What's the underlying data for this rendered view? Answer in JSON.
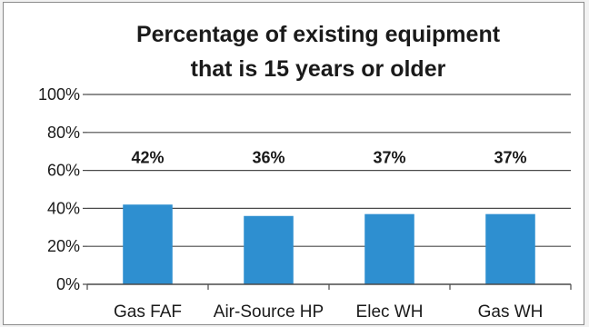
{
  "chart_data": {
    "type": "bar",
    "title_lines": [
      "Percentage of existing equipment",
      "that is 15 years or older"
    ],
    "categories": [
      "Gas FAF",
      "Air-Source HP",
      "Elec WH",
      "Gas WH"
    ],
    "values": [
      42,
      36,
      37,
      37
    ],
    "data_labels": [
      "42%",
      "36%",
      "37%",
      "37%"
    ],
    "y_ticks": [
      "0%",
      "20%",
      "40%",
      "60%",
      "80%",
      "100%"
    ],
    "ylim": [
      0,
      100
    ],
    "xlabel": "",
    "ylabel": "",
    "grid": true,
    "legend": "none",
    "bar_color": "#2e8fd0"
  }
}
